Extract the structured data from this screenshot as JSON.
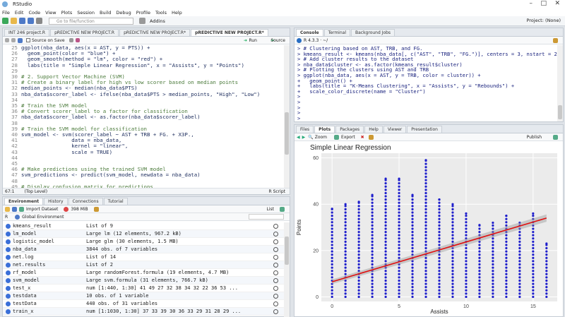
{
  "app": {
    "title": "RStudio",
    "project": "Project: (None)"
  },
  "menu": [
    "File",
    "Edit",
    "Code",
    "View",
    "Plots",
    "Session",
    "Build",
    "Debug",
    "Profile",
    "Tools",
    "Help"
  ],
  "toolbar": {
    "goto_placeholder": "Go to file/function",
    "addins": "Addins"
  },
  "editor": {
    "tabs": [
      "INT 246 project.R",
      "pREDICTIVE NEW PROJECT.R",
      "pREDICTIVE NEW PROJECT.R*",
      "pREDICTIVE NEW PROJECT.R*"
    ],
    "source_on_save": "Source on Save",
    "run": "Run",
    "source": "Source",
    "cursor_pos": "67:1",
    "scope": "(Top Level)",
    "file_type": "R Script",
    "lines": [
      {
        "n": "25",
        "t": "ggplot(nba_data, aes(x = AST, y = PTS)) +"
      },
      {
        "n": "26",
        "t": "  geom_point(color = \"blue\") +"
      },
      {
        "n": "27",
        "t": "  geom_smooth(method = \"lm\", color = \"red\") +"
      },
      {
        "n": "28",
        "t": "  labs(title = \"Simple Linear Regression\", x = \"Assists\", y = \"Points\")"
      },
      {
        "n": "29",
        "t": ""
      },
      {
        "n": "30",
        "t": "# 2. Support Vector Machine (SVM)"
      },
      {
        "n": "31",
        "t": "# Create a binary label for high vs low scorer based on median points"
      },
      {
        "n": "32",
        "t": "median_points <- median(nba_data$PTS)"
      },
      {
        "n": "33",
        "t": "nba_data$scorer_label <- ifelse(nba_data$PTS > median_points, \"High\", \"Low\")"
      },
      {
        "n": "34",
        "t": ""
      },
      {
        "n": "35",
        "t": "# Train the SVM model"
      },
      {
        "n": "36",
        "t": "# Convert scorer_label to a factor for classification"
      },
      {
        "n": "37",
        "t": "nba_data$scorer_label <- as.factor(nba_data$scorer_label)"
      },
      {
        "n": "38",
        "t": ""
      },
      {
        "n": "39",
        "t": "# Train the SVM model for classification"
      },
      {
        "n": "40",
        "t": "svm_model <- svm(scorer_label ~ AST + TRB + FG. + X3P.,"
      },
      {
        "n": "41",
        "t": "                data = nba_data,"
      },
      {
        "n": "42",
        "t": "                kernel = \"linear\","
      },
      {
        "n": "43",
        "t": "                scale = TRUE)"
      },
      {
        "n": "44",
        "t": ""
      },
      {
        "n": "45",
        "t": ""
      },
      {
        "n": "46",
        "t": "# Make predictions using the trained SVM model"
      },
      {
        "n": "47",
        "t": "svm_predictions <- predict(svm_model, newdata = nba_data)"
      },
      {
        "n": "48",
        "t": ""
      },
      {
        "n": "49",
        "t": "# Display confusion matrix for predictions"
      }
    ]
  },
  "console": {
    "tabs": [
      "Console",
      "Terminal",
      "Background Jobs"
    ],
    "version": "R 4.3.3 · ~/",
    "lines": [
      "> # Clustering based on AST, TRB, and FG.",
      "> kmeans_result <- kmeans(nba_data[, c(\"AST\", \"TRB\", \"FG.\")], centers = 3, nstart = 20)",
      "> # Add cluster results to the dataset",
      "> nba_data$cluster <- as.factor(kmeans_result$cluster)",
      "> # Plotting the clusters using AST and TRB",
      "> ggplot(nba_data, aes(x = AST, y = TRB, color = cluster)) +",
      "+   geom_point() +",
      "+   labs(title = \"K-Means Clustering\", x = \"Assists\", y = \"Rebounds\") +",
      "+   scale_color_discrete(name = \"Cluster\")",
      ">",
      ">",
      ">",
      ">",
      ">"
    ]
  },
  "environment": {
    "tabs": [
      "Environment",
      "History",
      "Connections",
      "Tutorial"
    ],
    "import": "Import Dataset",
    "memory": "398 MiB",
    "list_view": "List",
    "lang": "R",
    "scope": "Global Environment",
    "rows": [
      {
        "name": "kmeans_result",
        "value": "List of  9"
      },
      {
        "name": "lm_model",
        "value": "Large lm (12 elements,  967.2 kB)"
      },
      {
        "name": "logistic_model",
        "value": "Large glm (30 elements,  1.5 MB)"
      },
      {
        "name": "nba_data",
        "value": "3844 obs. of 7 variables"
      },
      {
        "name": "net.log",
        "value": "List of 14"
      },
      {
        "name": "net.results",
        "value": "List of  2"
      },
      {
        "name": "rf_model",
        "value": "Large randomForest.formula (19 elements,  4.7 MB)"
      },
      {
        "name": "svm_model",
        "value": "Large svm.formula (31 elements,  766.7 kB)"
      },
      {
        "name": "test_x",
        "value": "num [1:440, 1:30] 41 49 27 32 38 34 32 22 36 53 ..."
      },
      {
        "name": "testdata",
        "value": "10 obs. of 1 variable"
      },
      {
        "name": "testData",
        "value": "440 obs. of 31 variables"
      },
      {
        "name": "train_x",
        "value": "num [1:1030, 1:30] 37 33 39 30 36 33 29 31 28 29 ..."
      }
    ]
  },
  "plots": {
    "tabs": [
      "Files",
      "Plots",
      "Packages",
      "Help",
      "Viewer",
      "Presentation"
    ],
    "zoom": "Zoom",
    "export": "Export",
    "publish": "Publish"
  },
  "chart_data": {
    "type": "scatter",
    "title": "Simple Linear Regression",
    "xlabel": "Assists",
    "ylabel": "Points",
    "xlim": [
      -0.8,
      16.8
    ],
    "ylim": [
      -2,
      62
    ],
    "xticks": [
      0,
      5,
      10,
      15
    ],
    "yticks": [
      0,
      20,
      40,
      60
    ],
    "point_color": "#1f1fcc",
    "fit_color": "#e01010",
    "fit": {
      "x": [
        0,
        16
      ],
      "y": [
        6.5,
        34
      ]
    },
    "columns": [
      {
        "x": 0,
        "ymax": 38
      },
      {
        "x": 1,
        "ymax": 40
      },
      {
        "x": 2,
        "ymax": 41
      },
      {
        "x": 3,
        "ymax": 44
      },
      {
        "x": 4,
        "ymax": 51
      },
      {
        "x": 5,
        "ymax": 51
      },
      {
        "x": 6,
        "ymax": 44
      },
      {
        "x": 7,
        "ymax": 59
      },
      {
        "x": 8,
        "ymax": 42
      },
      {
        "x": 9,
        "ymax": 40
      },
      {
        "x": 10,
        "ymax": 36
      },
      {
        "x": 11,
        "ymax": 31
      },
      {
        "x": 12,
        "ymax": 32
      },
      {
        "x": 13,
        "ymax": 35
      },
      {
        "x": 14,
        "ymax": 32
      },
      {
        "x": 15,
        "ymax": 36
      },
      {
        "x": 16,
        "ymax": 23
      }
    ]
  }
}
